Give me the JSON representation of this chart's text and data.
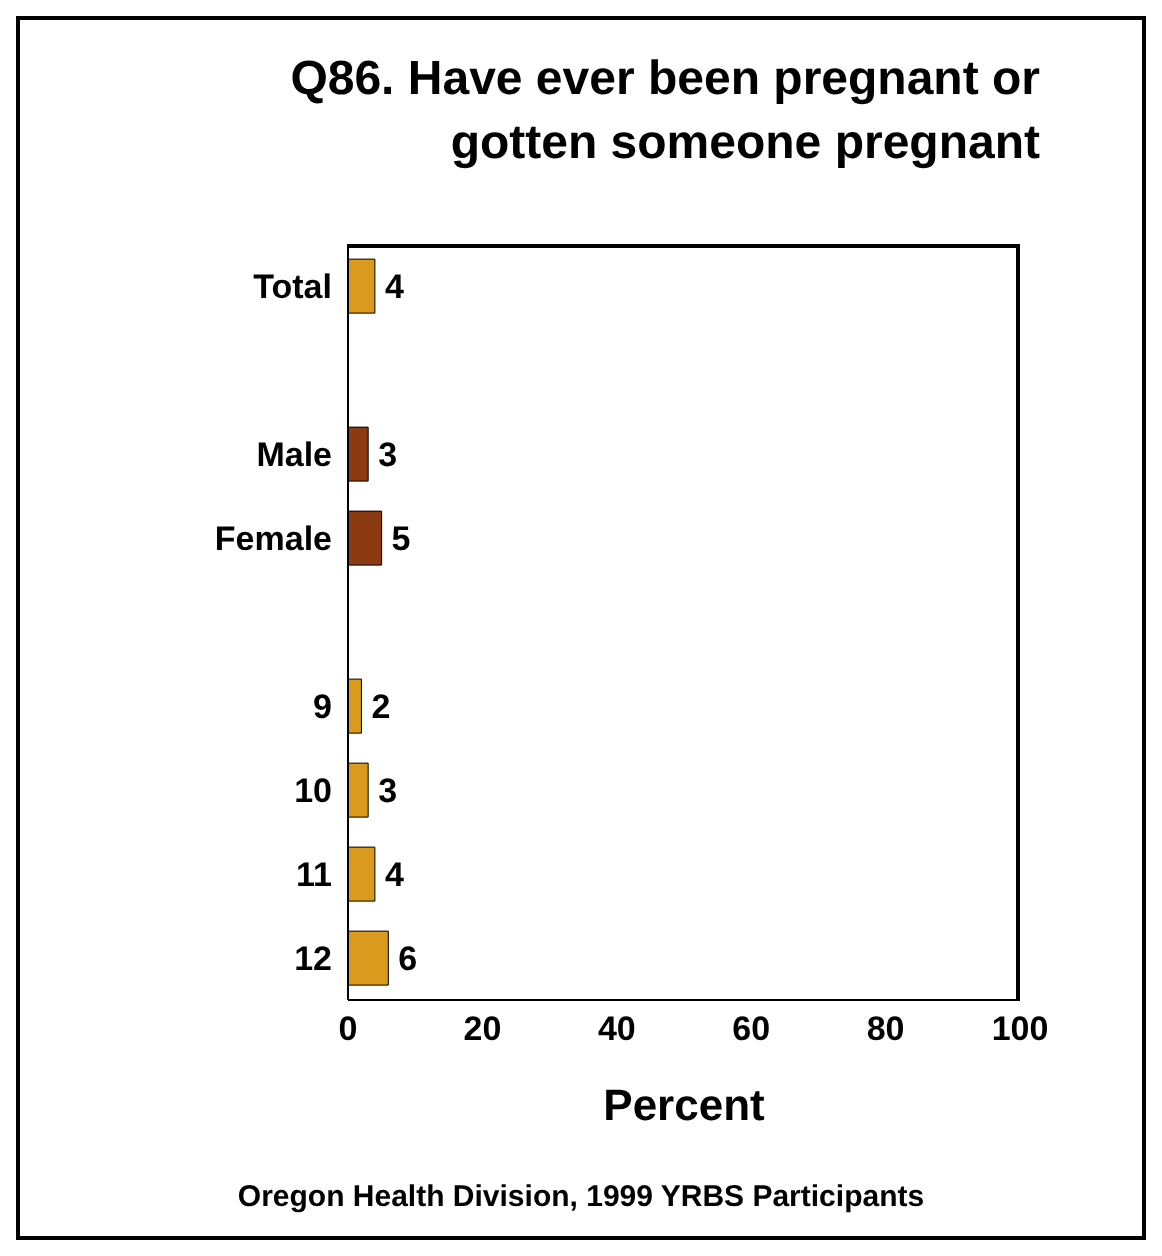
{
  "chart_data": {
    "type": "bar",
    "orientation": "horizontal",
    "title": "Q86. Have ever been pregnant or\ngotten someone pregnant",
    "xlabel": "Percent",
    "categories": [
      "Total",
      null,
      "Male",
      "Female",
      null,
      "9",
      "10",
      "11",
      "12"
    ],
    "values": [
      4,
      null,
      3,
      5,
      null,
      2,
      3,
      4,
      6
    ],
    "colors": [
      "#d99a1e",
      "#d99a1e",
      "#8b3a12",
      "#8b3a12",
      "#d99a1e",
      "#d99a1e",
      "#d99a1e",
      "#d99a1e",
      "#d99a1e"
    ],
    "xlim": [
      0,
      100
    ],
    "xticks": [
      0,
      20,
      40,
      60,
      80,
      100
    ],
    "data_labels": true,
    "grid": false,
    "legend": false,
    "annotations": [
      "Oregon Health Division, 1999 YRBS Participants"
    ]
  }
}
